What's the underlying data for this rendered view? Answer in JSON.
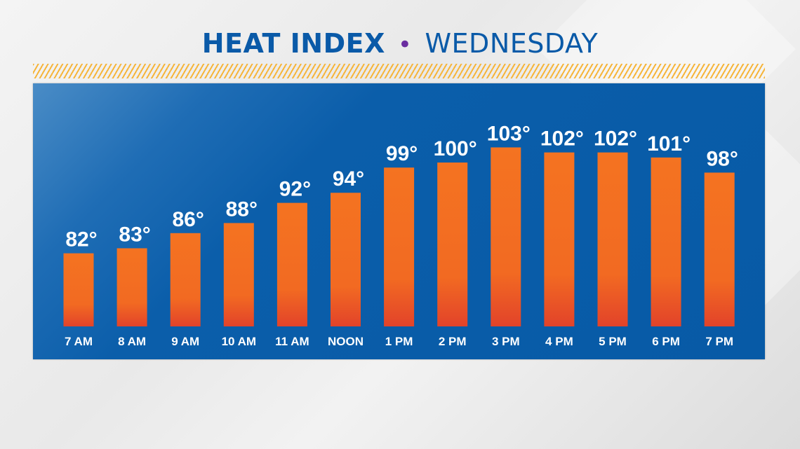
{
  "title": {
    "main": "HEAT INDEX",
    "separator": "•",
    "day": "WEDNESDAY"
  },
  "colors": {
    "title": "#0a5aa8",
    "panel": "#075aa6",
    "bar_top": "#f47321",
    "bar_bottom": "#e2432a",
    "stripe": "#f6b53a",
    "separator": "#6a2da0"
  },
  "chart_data": {
    "type": "bar",
    "title": "HEAT INDEX • WEDNESDAY",
    "categories": [
      "7 AM",
      "8 AM",
      "9 AM",
      "10 AM",
      "11 AM",
      "NOON",
      "1 PM",
      "2 PM",
      "3 PM",
      "4 PM",
      "5 PM",
      "6 PM",
      "7 PM"
    ],
    "values": [
      82,
      83,
      86,
      88,
      92,
      94,
      99,
      100,
      103,
      102,
      102,
      101,
      98
    ],
    "value_labels": [
      "82°",
      "83°",
      "86°",
      "88°",
      "92°",
      "94°",
      "99°",
      "100°",
      "103°",
      "102°",
      "102°",
      "101°",
      "98°"
    ],
    "unit": "°",
    "ylim": [
      67.5,
      115.7
    ],
    "grid": false,
    "legend": "none"
  }
}
